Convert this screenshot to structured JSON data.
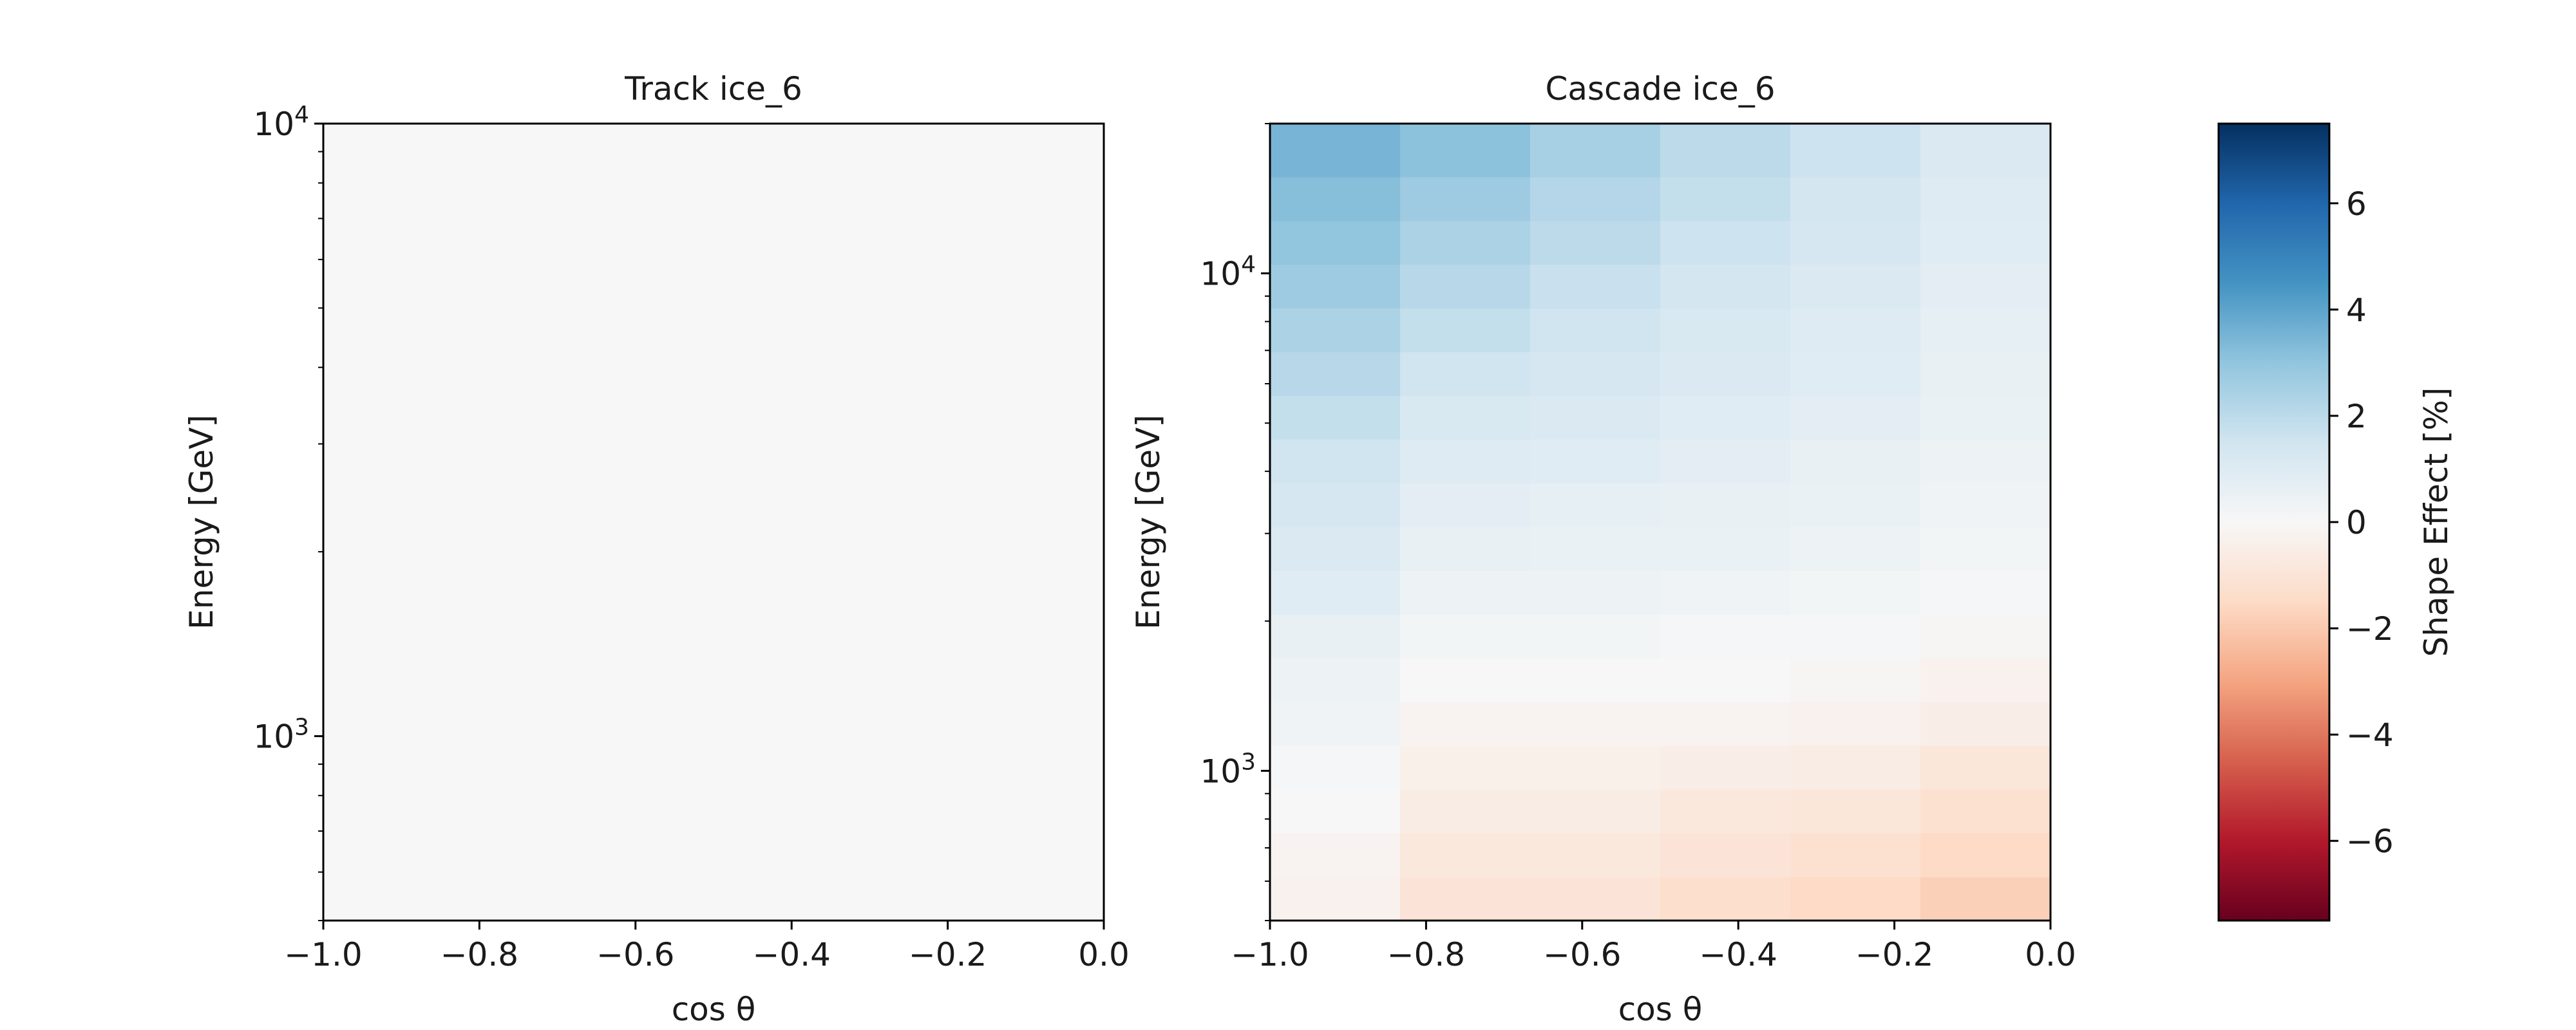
{
  "chart_data": [
    {
      "type": "heatmap",
      "title": "Track ice_6",
      "xlabel": "cos θ",
      "ylabel": "Energy [GeV]",
      "xlim": [
        -1.0,
        0.0
      ],
      "ylim": [
        500,
        10000
      ],
      "yscale": "log",
      "x_ticks": [
        "−1.0",
        "−0.8",
        "−0.6",
        "−0.4",
        "−0.2",
        "0.0"
      ],
      "x_tick_values": [
        -1.0,
        -0.8,
        -0.6,
        -0.4,
        -0.2,
        0.0
      ],
      "y_ticks": [
        {
          "base": "10",
          "exp": "3",
          "value": 1000
        },
        {
          "base": "10",
          "exp": "4",
          "value": 10000
        }
      ],
      "x_edges": [
        -1.0,
        0.0
      ],
      "y_edges": [
        500,
        10000
      ],
      "values": [
        [
          0.0
        ]
      ]
    },
    {
      "type": "heatmap",
      "title": "Cascade ice_6",
      "xlabel": "cos θ",
      "ylabel": "Energy [GeV]",
      "xlim": [
        -1.0,
        0.0
      ],
      "ylim": [
        500,
        20000
      ],
      "yscale": "log",
      "x_ticks": [
        "−1.0",
        "−0.8",
        "−0.6",
        "−0.4",
        "−0.2",
        "0.0"
      ],
      "x_tick_values": [
        -1.0,
        -0.8,
        -0.6,
        -0.4,
        -0.2,
        0.0
      ],
      "y_ticks": [
        {
          "base": "10",
          "exp": "3",
          "value": 1000
        },
        {
          "base": "10",
          "exp": "4",
          "value": 10000
        }
      ],
      "x_edges": [
        -1.0,
        -0.8333,
        -0.6667,
        -0.5,
        -0.3333,
        -0.1667,
        0.0
      ],
      "y_edges": [
        500,
        612,
        750,
        918,
        1124,
        1376,
        1685,
        2063,
        2526,
        3093,
        3787,
        4637,
        5677,
        6952,
        8512,
        10423,
        12762,
        15626,
        20000
      ],
      "values": [
        [
          -0.3,
          -1.0,
          -1.0,
          -1.3,
          -1.5,
          -1.8
        ],
        [
          -0.2,
          -0.8,
          -0.8,
          -1.0,
          -1.2,
          -1.5
        ],
        [
          0.0,
          -0.6,
          -0.6,
          -0.8,
          -0.9,
          -1.2
        ],
        [
          0.1,
          -0.4,
          -0.4,
          -0.5,
          -0.6,
          -0.9
        ],
        [
          0.3,
          -0.2,
          -0.2,
          -0.2,
          -0.3,
          -0.5
        ],
        [
          0.4,
          0.0,
          0.0,
          0.0,
          -0.1,
          -0.3
        ],
        [
          0.6,
          0.2,
          0.2,
          0.1,
          0.1,
          -0.1
        ],
        [
          0.9,
          0.4,
          0.4,
          0.3,
          0.2,
          0.1
        ],
        [
          1.1,
          0.6,
          0.5,
          0.5,
          0.4,
          0.2
        ],
        [
          1.3,
          0.8,
          0.7,
          0.6,
          0.5,
          0.3
        ],
        [
          1.5,
          1.0,
          0.9,
          0.8,
          0.6,
          0.4
        ],
        [
          1.8,
          1.2,
          1.1,
          0.9,
          0.8,
          0.5
        ],
        [
          2.1,
          1.5,
          1.3,
          1.1,
          0.9,
          0.6
        ],
        [
          2.4,
          1.8,
          1.5,
          1.2,
          1.0,
          0.7
        ],
        [
          2.7,
          2.1,
          1.7,
          1.4,
          1.1,
          0.8
        ],
        [
          3.0,
          2.4,
          2.0,
          1.6,
          1.3,
          0.9
        ],
        [
          3.2,
          2.7,
          2.2,
          1.8,
          1.4,
          1.0
        ],
        [
          3.5,
          3.1,
          2.5,
          2.0,
          1.6,
          1.1
        ]
      ]
    }
  ],
  "colorbar": {
    "label": "Shape Effect [%]",
    "vmin": -7.5,
    "vmax": 7.5,
    "ticks": [
      "−6",
      "−4",
      "−2",
      "0",
      "2",
      "4",
      "6"
    ],
    "tick_values": [
      -6,
      -4,
      -2,
      0,
      2,
      4,
      6
    ],
    "colormap": "RdBu",
    "colors": [
      "#67001f",
      "#b2182b",
      "#d6604d",
      "#f4a582",
      "#fddbc7",
      "#f7f7f7",
      "#d1e5f0",
      "#92c5de",
      "#4393c3",
      "#2166ac",
      "#053061"
    ]
  }
}
